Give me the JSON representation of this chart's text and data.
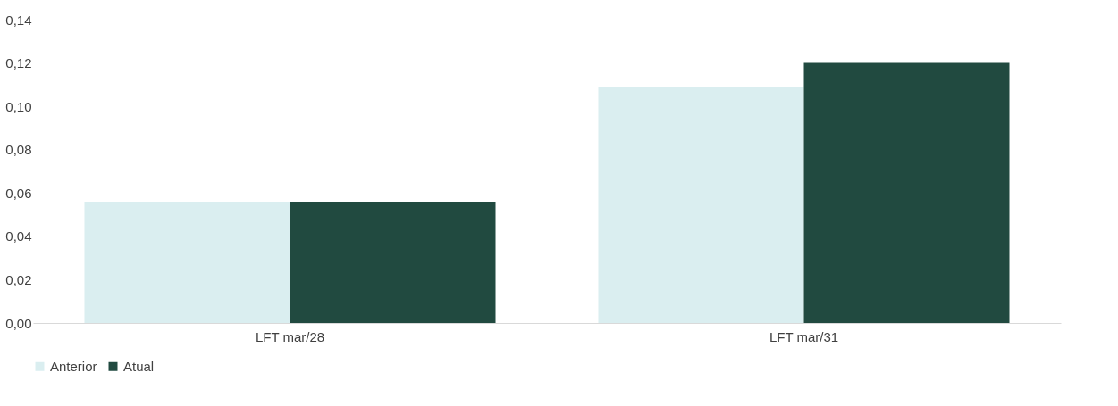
{
  "chart_data": {
    "type": "bar",
    "categories": [
      "LFT mar/28",
      "LFT mar/31"
    ],
    "series": [
      {
        "name": "Anterior",
        "color": "#daeef0",
        "values": [
          0.056,
          0.109
        ]
      },
      {
        "name": "Atual",
        "color": "#214a40",
        "values": [
          0.056,
          0.12
        ]
      }
    ],
    "ylim": [
      0,
      0.14
    ],
    "yticks": [
      {
        "value": 0,
        "label": "0,00"
      },
      {
        "value": 0.02,
        "label": "0,02"
      },
      {
        "value": 0.04,
        "label": "0,04"
      },
      {
        "value": 0.06,
        "label": "0,06"
      },
      {
        "value": 0.08,
        "label": "0,08"
      },
      {
        "value": 0.1,
        "label": "0,10"
      },
      {
        "value": 0.12,
        "label": "0,12"
      },
      {
        "value": 0.14,
        "label": "0,14"
      }
    ],
    "grid": false,
    "legend": "bottom"
  }
}
